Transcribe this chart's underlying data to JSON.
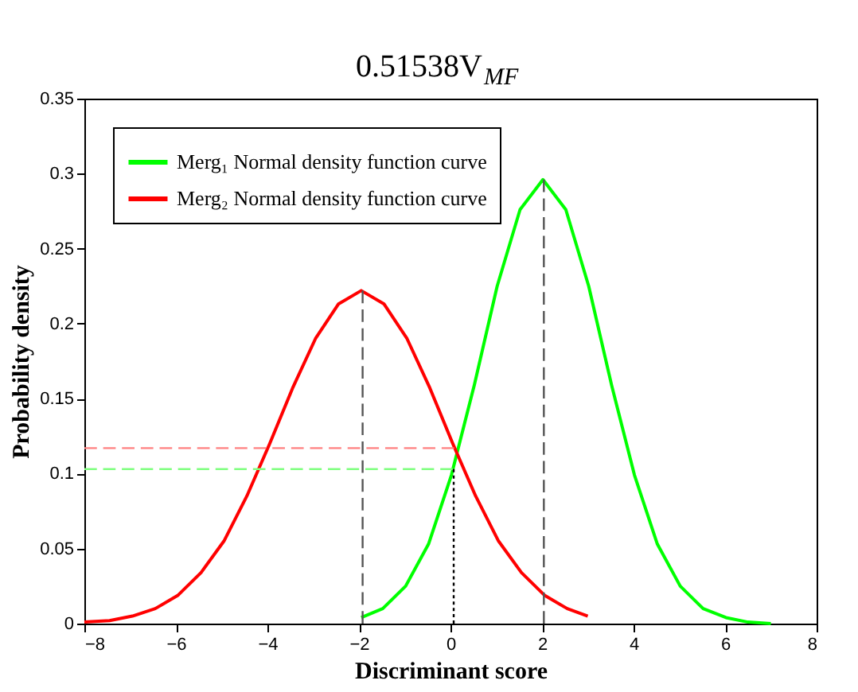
{
  "chart_data": {
    "type": "line",
    "title": "0.51538V$_{MF}$",
    "xlabel": "Discriminant score",
    "ylabel": "Probability density",
    "xlim": [
      -8,
      8
    ],
    "xticks": [
      -8,
      -6,
      -4,
      -2,
      0,
      2,
      4,
      6,
      8
    ],
    "ylim": [
      0,
      0.35
    ],
    "yticks": [
      0,
      0.05,
      0.1,
      0.15,
      0.2,
      0.25,
      0.3,
      0.35
    ],
    "grid": false,
    "legend": "top left",
    "marker": "none",
    "series": [
      {
        "name": "Merg₁ Normal density function curve",
        "color": "#00ff00",
        "line_style": "solid",
        "x": [
          -1.95,
          -1.48,
          -0.98,
          -0.48,
          0.02,
          0.52,
          1.02,
          1.52,
          2.02,
          2.52,
          3.02,
          3.52,
          4.02,
          4.52,
          5.02,
          5.52,
          6.02,
          6.5,
          7.0
        ],
        "values": [
          0.004,
          0.01,
          0.025,
          0.053,
          0.099,
          0.159,
          0.225,
          0.276,
          0.296,
          0.276,
          0.225,
          0.159,
          0.099,
          0.053,
          0.025,
          0.01,
          0.004,
          0.001,
          0
        ]
      },
      {
        "name": "Merg₂ Normal density function curve",
        "color": "#ff0000",
        "line_style": "solid",
        "x": [
          -8,
          -7.45,
          -6.95,
          -6.45,
          -5.95,
          -5.45,
          -4.95,
          -4.45,
          -3.95,
          -3.45,
          -2.95,
          -2.45,
          -1.95,
          -1.45,
          -0.95,
          -0.45,
          0.05,
          0.55,
          1.05,
          1.55,
          2.05,
          2.55,
          3.0
        ],
        "values": [
          0.001,
          0.002,
          0.005,
          0.01,
          0.019,
          0.034,
          0.055,
          0.085,
          0.12,
          0.157,
          0.19,
          0.213,
          0.222,
          0.213,
          0.19,
          0.157,
          0.12,
          0.085,
          0.055,
          0.034,
          0.019,
          0.01,
          0.005
        ]
      },
      {
        "color": "#ff8080",
        "line_style": "dashed",
        "x": [
          -8,
          0.08
        ],
        "values": [
          0.117,
          0.117
        ]
      },
      {
        "color": "#80ff80",
        "line_style": "dashed",
        "x": [
          -8,
          0.05
        ],
        "values": [
          0.103,
          0.103
        ]
      },
      {
        "color": "#555555",
        "line_style": "dashed",
        "x": [
          -1.92,
          -1.92
        ],
        "values": [
          0,
          0.222
        ]
      },
      {
        "color": "#555555",
        "line_style": "dashed",
        "x": [
          2.04,
          2.04
        ],
        "values": [
          0,
          0.296
        ]
      },
      {
        "color": "#000000",
        "line_style": "dotted",
        "x": [
          0.07,
          0.07
        ],
        "values": [
          0,
          0.103
        ]
      }
    ]
  }
}
